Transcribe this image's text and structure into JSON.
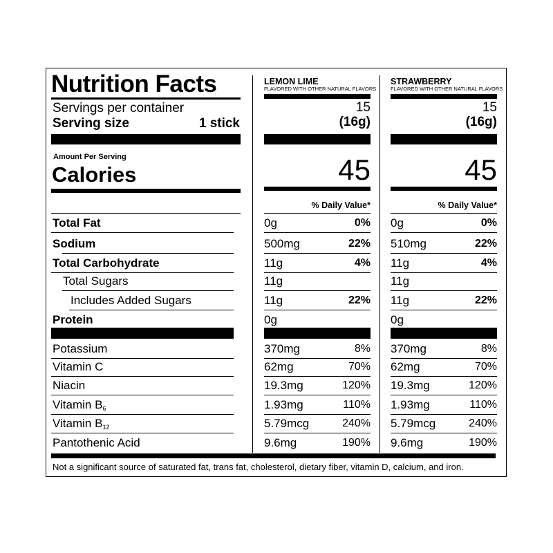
{
  "title": "Nutrition Facts",
  "servings_label": "Servings per container",
  "serving_size_label": "Serving size",
  "serving_size_value": "1 stick",
  "amount_per_serving": "Amount Per Serving",
  "calories_label": "Calories",
  "daily_value_header": "% Daily Value*",
  "columns": [
    {
      "name": "LEMON LIME",
      "subtitle": "FLAVORED WITH OTHER NATURAL FLAVORS",
      "servings": "15",
      "serving_size": "(16g)",
      "calories": "45",
      "values": [
        {
          "amount": "0g",
          "dv": "0%"
        },
        {
          "amount": "500mg",
          "dv": "22%"
        },
        {
          "amount": "11g",
          "dv": "4%"
        },
        {
          "amount": "11g",
          "dv": ""
        },
        {
          "amount": "11g",
          "dv": "22%"
        },
        {
          "amount": "0g",
          "dv": ""
        },
        {
          "amount": "370mg",
          "dv": "8%"
        },
        {
          "amount": "62mg",
          "dv": "70%"
        },
        {
          "amount": "19.3mg",
          "dv": "120%"
        },
        {
          "amount": "1.93mg",
          "dv": "110%"
        },
        {
          "amount": "5.79mcg",
          "dv": "240%"
        },
        {
          "amount": "9.6mg",
          "dv": "190%"
        }
      ]
    },
    {
      "name": "STRAWBERRY",
      "subtitle": "FLAVORED WITH OTHER NATURAL FLAVORS",
      "servings": "15",
      "serving_size": "(16g)",
      "calories": "45",
      "values": [
        {
          "amount": "0g",
          "dv": "0%"
        },
        {
          "amount": "510mg",
          "dv": "22%"
        },
        {
          "amount": "11g",
          "dv": "4%"
        },
        {
          "amount": "11g",
          "dv": ""
        },
        {
          "amount": "11g",
          "dv": "22%"
        },
        {
          "amount": "0g",
          "dv": ""
        },
        {
          "amount": "370mg",
          "dv": "8%"
        },
        {
          "amount": "62mg",
          "dv": "70%"
        },
        {
          "amount": "19.3mg",
          "dv": "120%"
        },
        {
          "amount": "1.93mg",
          "dv": "110%"
        },
        {
          "amount": "5.79mcg",
          "dv": "240%"
        },
        {
          "amount": "9.6mg",
          "dv": "190%"
        }
      ]
    }
  ],
  "nutrients": [
    {
      "label": "Total Fat",
      "sub": "",
      "bold": true
    },
    {
      "label": "Sodium",
      "sub": "",
      "bold": true
    },
    {
      "label": "Total Carbohydrate",
      "sub": "",
      "bold": true
    },
    {
      "label": "Total Sugars",
      "sub": "",
      "bold": false
    },
    {
      "label": "Includes Added Sugars",
      "sub": "",
      "bold": false
    },
    {
      "label": "Protein",
      "sub": "",
      "bold": true
    },
    {
      "label": "Potassium",
      "sub": "",
      "bold": false
    },
    {
      "label": "Vitamin C",
      "sub": "",
      "bold": false
    },
    {
      "label": "Niacin",
      "sub": "",
      "bold": false
    },
    {
      "label": "Vitamin B",
      "sub": "6",
      "bold": false
    },
    {
      "label": "Vitamin B",
      "sub": "12",
      "bold": false
    },
    {
      "label": "Pantothenic Acid",
      "sub": "",
      "bold": false
    }
  ],
  "footnote": "Not a significant source of saturated fat, trans fat, cholesterol, dietary fiber, vitamin D, calcium, and iron."
}
